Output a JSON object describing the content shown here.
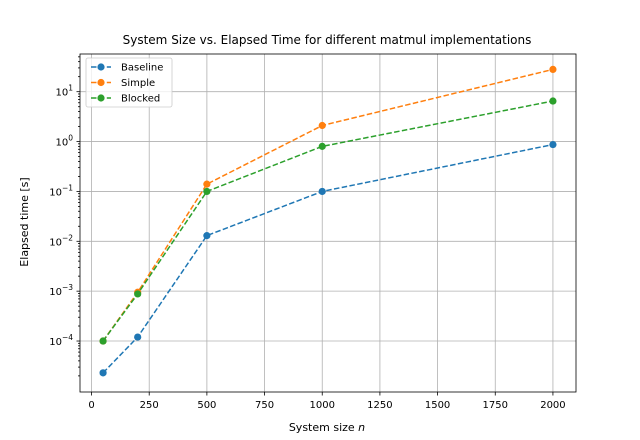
{
  "chart_data": {
    "type": "line",
    "title": "System Size vs. Elapsed Time for different matmul implementations",
    "xlabel_prefix": "System size ",
    "xlabel_var": "n",
    "ylabel": "Elapsed time [s]",
    "x_scale": "linear",
    "y_scale": "log",
    "xlim": [
      -50,
      2100
    ],
    "ylim": [
      9.5e-06,
      57
    ],
    "x_ticks": [
      0,
      250,
      500,
      750,
      1000,
      1250,
      1500,
      1750,
      2000
    ],
    "x_tick_labels": [
      "0",
      "250",
      "500",
      "750",
      "1000",
      "1250",
      "1500",
      "1750",
      "2000"
    ],
    "y_ticks": [
      0.0001,
      0.001,
      0.01,
      0.1,
      1,
      10
    ],
    "y_tick_labels": [
      {
        "base": "10",
        "exp": "−4"
      },
      {
        "base": "10",
        "exp": "−3"
      },
      {
        "base": "10",
        "exp": "−2"
      },
      {
        "base": "10",
        "exp": "−1"
      },
      {
        "base": "10",
        "exp": "0"
      },
      {
        "base": "10",
        "exp": "1"
      }
    ],
    "grid": true,
    "legend_position": "upper-left",
    "line_style": "dashed",
    "marker": "circle",
    "x": [
      50,
      200,
      500,
      1000,
      2000
    ],
    "series": [
      {
        "name": "Baseline",
        "color": "#1f77b4",
        "values": [
          2.3e-05,
          0.00012,
          0.013,
          0.1,
          0.87
        ]
      },
      {
        "name": "Simple",
        "color": "#ff7f0e",
        "values": [
          0.0001,
          0.00095,
          0.14,
          2.1,
          28
        ]
      },
      {
        "name": "Blocked",
        "color": "#2ca02c",
        "values": [
          0.0001,
          0.00088,
          0.1,
          0.8,
          6.5
        ]
      }
    ]
  }
}
